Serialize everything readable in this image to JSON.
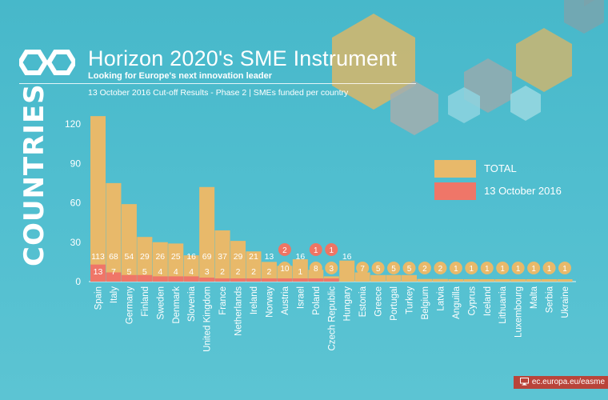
{
  "header": {
    "title": "Horizon 2020's SME Instrument",
    "subtitle": "Looking for Europe's next innovation leader",
    "results": "13 October 2016 Cut-off Results - Phase 2  | SMEs funded per country"
  },
  "side_label": "COUNTRIES",
  "footer": {
    "url": "ec.europa.eu/easme",
    "icon": "monitor-icon"
  },
  "colors": {
    "total": "#e8b96a",
    "cutoff": "#ef7668",
    "badge_cutoff": "#ee7564",
    "badge_total": "#e8b96a"
  },
  "chart_data": {
    "type": "bar",
    "ylim": [
      0,
      120
    ],
    "yticks": [
      "0",
      "30",
      "60",
      "90",
      "120"
    ],
    "categories": [
      "Spain",
      "Italy",
      "Germany",
      "Finland",
      "Sweden",
      "Denmark",
      "Slovenia",
      "United Kingdom",
      "France",
      "Netherlands",
      "Ireland",
      "Norway",
      "Austria",
      "Israel",
      "Poland",
      "Czech Republic",
      "Hungary",
      "Estonia",
      "Greece",
      "Portugal",
      "Turkey",
      "Belgium",
      "Latvia",
      "Anguilla",
      "Cyprus",
      "Iceland",
      "Lithuania",
      "Luxembourg",
      "Malta",
      "Serbia",
      "Ukraine"
    ],
    "series": [
      {
        "name": "TOTAL",
        "values": [
          113,
          68,
          54,
          29,
          26,
          25,
          16,
          69,
          37,
          29,
          21,
          13,
          10,
          16,
          8,
          3,
          16,
          7,
          5,
          5,
          5,
          2,
          2,
          1,
          1,
          1,
          1,
          1,
          1,
          1,
          1
        ]
      },
      {
        "name": "13 October 2016",
        "values": [
          13,
          7,
          5,
          5,
          4,
          4,
          4,
          3,
          2,
          2,
          2,
          2,
          2,
          1,
          1,
          1,
          0,
          0,
          0,
          0,
          0,
          0,
          0,
          0,
          0,
          0,
          0,
          0,
          0,
          0,
          0
        ]
      }
    ]
  }
}
